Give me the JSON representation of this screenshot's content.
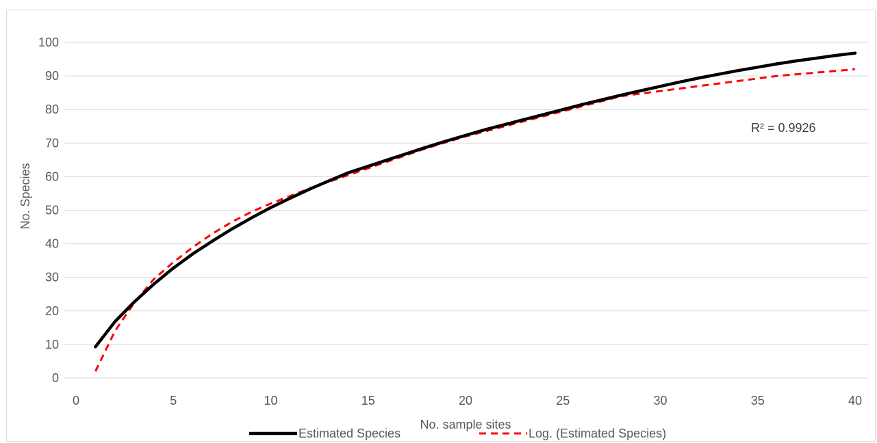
{
  "chart_data": {
    "type": "line",
    "title": "",
    "xlabel": "No. sample sites",
    "ylabel": "No. Species",
    "xlim": [
      0,
      40
    ],
    "ylim": [
      0,
      100
    ],
    "x_ticks": [
      0,
      5,
      10,
      15,
      20,
      25,
      30,
      35,
      40
    ],
    "y_ticks": [
      0,
      10,
      20,
      30,
      40,
      50,
      60,
      70,
      80,
      90,
      100
    ],
    "grid": "horizontal",
    "legend_position": "bottom",
    "annotation": "R² = 0.9926",
    "series": [
      {
        "name": "Estimated Species",
        "color": "#000000",
        "style": "solid",
        "x": [
          1,
          2,
          3,
          4,
          5,
          6,
          7,
          8,
          9,
          10,
          11,
          12,
          13,
          14,
          15,
          16,
          17,
          18,
          19,
          20,
          21,
          22,
          23,
          24,
          25,
          26,
          27,
          28,
          29,
          30,
          31,
          32,
          33,
          34,
          35,
          36,
          37,
          38,
          39,
          40
        ],
        "values": [
          9.3,
          16.8,
          22.7,
          28.0,
          32.8,
          37.0,
          40.8,
          44.4,
          47.7,
          50.8,
          53.6,
          56.3,
          58.8,
          61.2,
          63.1,
          65.0,
          66.9,
          68.8,
          70.6,
          72.3,
          74.0,
          75.5,
          77.0,
          78.5,
          80.0,
          81.5,
          82.9,
          84.3,
          85.6,
          86.9,
          88.2,
          89.4,
          90.5,
          91.6,
          92.6,
          93.6,
          94.5,
          95.3,
          96.1,
          96.8
        ]
      },
      {
        "name": "Log. (Estimated Species)",
        "color": "#ff0000",
        "style": "dashed",
        "trendline": "logarithmic",
        "x": [
          1,
          2,
          3,
          4,
          5,
          6,
          7,
          8,
          9,
          10,
          12,
          14,
          16,
          18,
          20,
          22,
          24,
          26,
          28,
          30,
          32,
          34,
          36,
          38,
          40
        ],
        "values": [
          2.0,
          14.0,
          22.5,
          29.5,
          34.5,
          39.0,
          43.0,
          46.5,
          49.5,
          52.0,
          56.5,
          60.5,
          64.5,
          68.5,
          72.0,
          75.0,
          78.0,
          81.0,
          84.0,
          85.5,
          87.0,
          88.5,
          90.0,
          91.0,
          92.0
        ]
      }
    ]
  }
}
